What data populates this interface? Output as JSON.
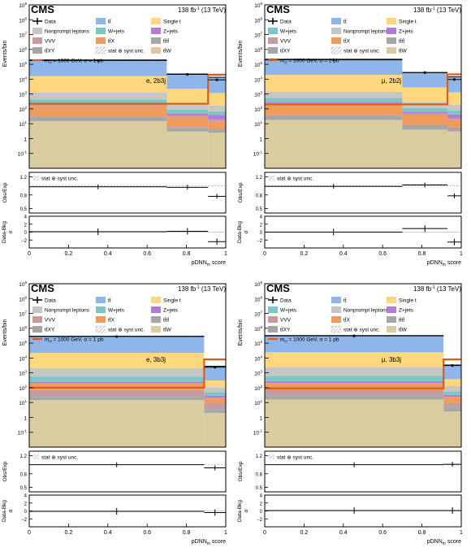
{
  "legend_entries": {
    "data": "Data",
    "ttbar": "tt̄",
    "single_t": "Single t",
    "nonprompt": "Nonprompt leptons",
    "wjets": "W+jets",
    "zjets": "Z+jets",
    "vvv": "VVV",
    "ttx": "tt̄X",
    "tttt": "tt̄tt̄",
    "ttxy": "tt̄XY",
    "unc": "stat ⊕ syst unc.",
    "ttw": "tt̄W",
    "signal": "m",
    "signal_sub": "H",
    "signal_rest": " = 1000 GeV, σ = 1 pb"
  },
  "colors": {
    "ttbar": "#8fb6ea",
    "single_t": "#ffd77e",
    "nonprompt": "#c6c6c6",
    "wjets": "#7cc7c3",
    "zjets": "#b27ad9",
    "vvv": "#c99a9a",
    "ttx": "#ef9b5e",
    "tttt": "#a6a6a6",
    "ttxy": "#a5a5a5",
    "ttw": "#d8cca0",
    "signal": "#d95f18"
  },
  "chart_data": [
    {
      "type": "bar",
      "panel": "top-left",
      "experiment": "CMS",
      "lumi": "138 fb",
      "lumi_sup": "-1",
      "lumi_energy": " (13 TeV)",
      "category": "e, 2b3j",
      "xlabel_main": "pDNN",
      "xlabel_sub": "m",
      "xlabel_rest": " score",
      "ylabel": "Events/bin",
      "ratio_ylabel": "Obs/Exp",
      "pull_ylabel": "Data-Bkg",
      "pull_ylabel2": "σ",
      "bin_edges": [
        0,
        0.7,
        0.91,
        1.0
      ],
      "ylim": [
        0.01,
        1000000000
      ],
      "ratio_ylim": [
        0.4,
        1.3
      ],
      "pull_ylim": [
        -4,
        4
      ],
      "stack": [
        {
          "process": "ttw",
          "values": [
            15,
            3,
            2.5
          ]
        },
        {
          "process": "tttt",
          "values": [
            10,
            2,
            1.2
          ]
        },
        {
          "process": "ttxy",
          "values": [
            6,
            1,
            0.8
          ]
        },
        {
          "process": "ttx",
          "values": [
            120,
            20,
            10
          ]
        },
        {
          "process": "vvv",
          "values": [
            50,
            10,
            5
          ]
        },
        {
          "process": "zjets",
          "values": [
            30,
            15,
            20
          ]
        },
        {
          "process": "wjets",
          "values": [
            200,
            40,
            30
          ]
        },
        {
          "process": "nonprompt",
          "values": [
            800,
            150,
            100
          ]
        },
        {
          "process": "single_t",
          "values": [
            15000,
            2000,
            1000
          ]
        },
        {
          "process": "ttbar",
          "values": [
            180000,
            20000,
            12000
          ]
        }
      ],
      "data": [
        180000,
        21000,
        9000
      ],
      "signal": [
        220,
        220,
        20000
      ],
      "ratio": [
        0.98,
        0.97,
        0.77
      ],
      "pull": [
        0.1,
        0.2,
        -2.4
      ]
    },
    {
      "type": "bar",
      "panel": "top-right",
      "experiment": "CMS",
      "lumi": "138 fb",
      "lumi_sup": "-1",
      "lumi_energy": " (13 TeV)",
      "category": "μ, 2b2j",
      "xlabel_main": "pDNN",
      "xlabel_sub": "m",
      "xlabel_rest": " score",
      "ylabel": "Events/bin",
      "ratio_ylabel": "Obs/Exp",
      "pull_ylabel": "Data-Bkg",
      "pull_ylabel2": "σ",
      "bin_edges": [
        0,
        0.7,
        0.93,
        1.0
      ],
      "ylim": [
        0.01,
        1000000000
      ],
      "ratio_ylim": [
        0.4,
        1.3
      ],
      "pull_ylim": [
        -4,
        4
      ],
      "stack": [
        {
          "process": "ttw",
          "values": [
            18,
            4,
            3
          ]
        },
        {
          "process": "tttt",
          "values": [
            12,
            3,
            1.5
          ]
        },
        {
          "process": "ttxy",
          "values": [
            7,
            1.5,
            1
          ]
        },
        {
          "process": "ttx",
          "values": [
            150,
            30,
            12
          ]
        },
        {
          "process": "vvv",
          "values": [
            60,
            12,
            6
          ]
        },
        {
          "process": "zjets",
          "values": [
            40,
            15,
            18
          ]
        },
        {
          "process": "wjets",
          "values": [
            250,
            50,
            35
          ]
        },
        {
          "process": "nonprompt",
          "values": [
            900,
            180,
            110
          ]
        },
        {
          "process": "single_t",
          "values": [
            18000,
            2500,
            1100
          ]
        },
        {
          "process": "ttbar",
          "values": [
            200000,
            25000,
            13000
          ]
        }
      ],
      "data": [
        200000,
        28000,
        9500
      ],
      "signal": [
        200,
        200,
        21000
      ],
      "ratio": [
        0.99,
        1.02,
        0.78
      ],
      "pull": [
        0.0,
        0.9,
        -2.5
      ]
    },
    {
      "type": "bar",
      "panel": "bottom-left",
      "experiment": "CMS",
      "lumi": "138 fb",
      "lumi_sup": "-1",
      "lumi_energy": " (13 TeV)",
      "category": "e, 3b3j",
      "xlabel_main": "pDNN",
      "xlabel_sub": "m",
      "xlabel_rest": " score",
      "ylabel": "Events/bin",
      "ratio_ylabel": "Obs/Exp",
      "pull_ylabel": "Data-Bkg",
      "pull_ylabel2": "σ",
      "bin_edges": [
        0,
        0.89,
        1.0
      ],
      "ylim": [
        0.01,
        1000000000
      ],
      "ratio_ylim": [
        0.4,
        1.3
      ],
      "pull_ylim": [
        -4,
        4
      ],
      "stack": [
        {
          "process": "ttw",
          "values": [
            15,
            2
          ]
        },
        {
          "process": "tttt",
          "values": [
            9,
            1.2
          ]
        },
        {
          "process": "ttxy",
          "values": [
            6,
            0.8
          ]
        },
        {
          "process": "vvv",
          "values": [
            40,
            5
          ]
        },
        {
          "process": "ttx",
          "values": [
            120,
            12
          ]
        },
        {
          "process": "zjets",
          "values": [
            60,
            8
          ]
        },
        {
          "process": "wjets",
          "values": [
            300,
            20
          ]
        },
        {
          "process": "nonprompt",
          "values": [
            1500,
            60
          ]
        },
        {
          "process": "single_t",
          "values": [
            20000,
            200
          ]
        },
        {
          "process": "ttbar",
          "values": [
            270000,
            2500
          ]
        }
      ],
      "data": [
        280000,
        2400
      ],
      "signal": [
        100,
        8000
      ],
      "ratio": [
        1.0,
        0.93
      ],
      "pull": [
        -0.1,
        -0.4
      ]
    },
    {
      "type": "bar",
      "panel": "bottom-right",
      "experiment": "CMS",
      "lumi": "138 fb",
      "lumi_sup": "-1",
      "lumi_energy": " (13 TeV)",
      "category": "μ, 3b3j",
      "xlabel_main": "pDNN",
      "xlabel_sub": "m",
      "xlabel_rest": " score",
      "ylabel": "Events/bin",
      "ratio_ylabel": "Obs/Exp",
      "pull_ylabel": "Data-Bkg",
      "pull_ylabel2": "σ",
      "bin_edges": [
        0,
        0.91,
        1.0
      ],
      "ylim": [
        0.01,
        1000000000
      ],
      "ratio_ylim": [
        0.4,
        1.3
      ],
      "pull_ylim": [
        -4,
        4
      ],
      "stack": [
        {
          "process": "ttw",
          "values": [
            16,
            2.5
          ]
        },
        {
          "process": "tttt",
          "values": [
            10,
            1.5
          ]
        },
        {
          "process": "ttxy",
          "values": [
            7,
            1
          ]
        },
        {
          "process": "vvv",
          "values": [
            45,
            5
          ]
        },
        {
          "process": "ttx",
          "values": [
            130,
            14
          ]
        },
        {
          "process": "zjets",
          "values": [
            70,
            9
          ]
        },
        {
          "process": "wjets",
          "values": [
            350,
            25
          ]
        },
        {
          "process": "nonprompt",
          "values": [
            1700,
            70
          ]
        },
        {
          "process": "single_t",
          "values": [
            22000,
            250
          ]
        },
        {
          "process": "ttbar",
          "values": [
            300000,
            3000
          ]
        }
      ],
      "data": [
        310000,
        3100
      ],
      "signal": [
        90,
        8000
      ],
      "ratio": [
        1.0,
        1.01
      ],
      "pull": [
        0.1,
        0.1
      ]
    }
  ]
}
